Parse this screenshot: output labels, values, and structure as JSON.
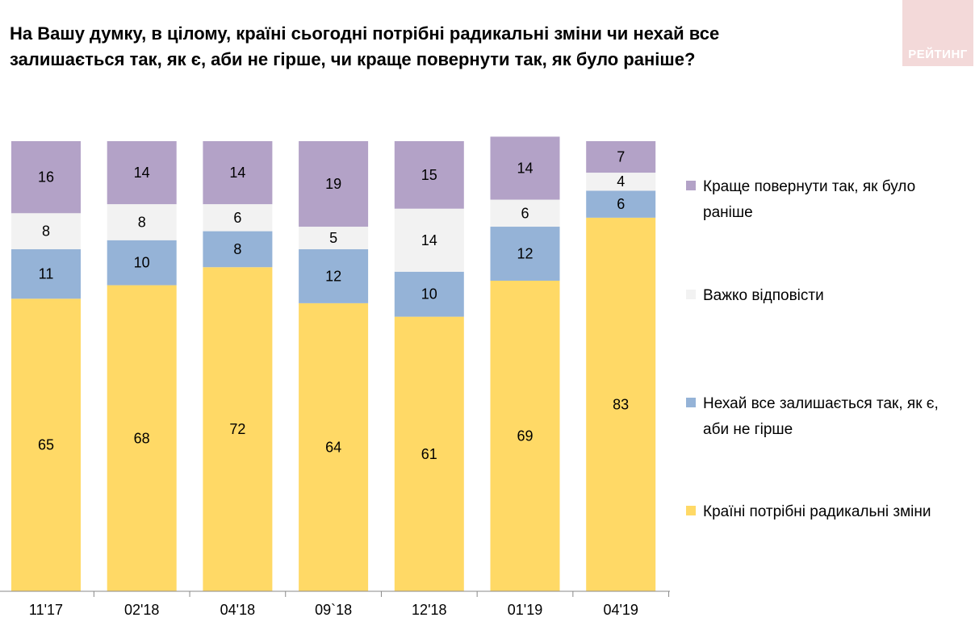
{
  "title": "На Вашу думку, в цілому, країні сьогодні потрібні радикальні зміни чи нехай все залишається так, як є, аби не гірше, чи краще повернути так, як було раніше?",
  "logo_text": "РЕЙТИНГ",
  "chart_data": {
    "type": "bar",
    "stacked": true,
    "categories": [
      "11'17",
      "02'18",
      "04'18",
      "09`18",
      "12'18",
      "01'19",
      "04'19"
    ],
    "ylim": [
      0,
      100
    ],
    "legend_position": "right",
    "grid": false,
    "series": [
      {
        "name": "Країні потрібні радикальні зміни",
        "legend_lines": [
          "Країні потрібні радикальні зміни"
        ],
        "color": "#FFD966",
        "values": [
          65,
          68,
          72,
          64,
          61,
          69,
          83
        ]
      },
      {
        "name": "Нехай все залишається так, як є, аби не гірше",
        "legend_lines": [
          "Нехай все залишається так, як є,",
          "аби не гірше"
        ],
        "color": "#95B3D7",
        "values": [
          11,
          10,
          8,
          12,
          10,
          12,
          6
        ]
      },
      {
        "name": "Важко відповісти",
        "legend_lines": [
          "Важко відповісти"
        ],
        "color": "#F2F2F2",
        "values": [
          8,
          8,
          6,
          5,
          14,
          6,
          4
        ]
      },
      {
        "name": "Краще повернути так, як було раніше",
        "legend_lines": [
          "Краще повернути так, як було",
          "раніше"
        ],
        "color": "#B3A2C7",
        "values": [
          16,
          14,
          14,
          19,
          15,
          14,
          7
        ]
      }
    ]
  }
}
